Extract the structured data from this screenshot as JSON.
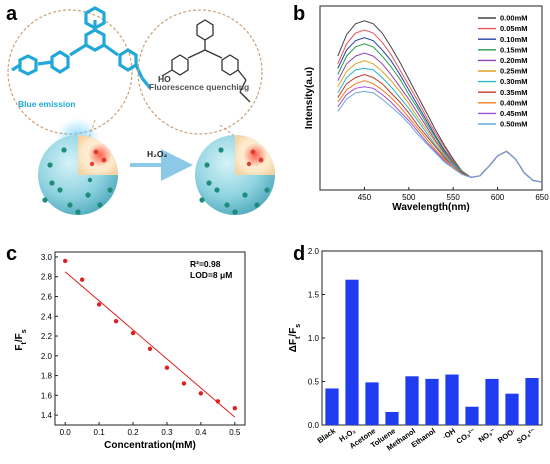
{
  "panel_a": {
    "letter": "a",
    "blue_label": "Blue emission",
    "quench_label": "Fluorescence quenching",
    "arrow_label": "H₂O₂",
    "colors": {
      "sphere": "#8fd3e0",
      "blue_mol": "#21a8d8",
      "dots": "#1d8c7a",
      "red": "#e04030"
    }
  },
  "chart_data": [
    {
      "panel": "b",
      "type": "line",
      "title": "",
      "xlabel": "Wavelength(nm)",
      "ylabel": "Intensity(a.u)",
      "xlim": [
        400,
        650
      ],
      "xticks": [
        450,
        500,
        550,
        600,
        650
      ],
      "legend_position": "top-right",
      "grid": false,
      "x": [
        420,
        430,
        440,
        450,
        460,
        470,
        480,
        490,
        500,
        510,
        520,
        530,
        540,
        550,
        560,
        570,
        580,
        590,
        600,
        610,
        620,
        630,
        640,
        650
      ],
      "series": [
        {
          "name": "0.00mM",
          "color": "#444444",
          "values": [
            0.82,
            0.96,
            1.03,
            1.05,
            1.03,
            0.97,
            0.88,
            0.78,
            0.67,
            0.56,
            0.45,
            0.34,
            0.24,
            0.15,
            0.07,
            0.03,
            0.04,
            0.1,
            0.17,
            0.2,
            0.15,
            0.06,
            0.01,
            0.0
          ]
        },
        {
          "name": "0.05mM",
          "color": "#e8545a",
          "values": [
            0.77,
            0.9,
            0.97,
            0.99,
            0.97,
            0.91,
            0.83,
            0.73,
            0.63,
            0.53,
            0.42,
            0.32,
            0.23,
            0.14,
            0.07,
            0.03,
            0.04,
            0.1,
            0.17,
            0.2,
            0.15,
            0.06,
            0.01,
            0.0
          ]
        },
        {
          "name": "0.10mM",
          "color": "#1f3fa8",
          "values": [
            0.74,
            0.86,
            0.92,
            0.94,
            0.92,
            0.86,
            0.79,
            0.7,
            0.6,
            0.5,
            0.4,
            0.3,
            0.21,
            0.13,
            0.07,
            0.03,
            0.04,
            0.1,
            0.17,
            0.2,
            0.15,
            0.06,
            0.01,
            0.0
          ]
        },
        {
          "name": "0.15mM",
          "color": "#2a9d4a",
          "values": [
            0.7,
            0.82,
            0.88,
            0.9,
            0.88,
            0.82,
            0.75,
            0.67,
            0.57,
            0.48,
            0.38,
            0.29,
            0.2,
            0.13,
            0.07,
            0.03,
            0.04,
            0.1,
            0.17,
            0.2,
            0.15,
            0.06,
            0.01,
            0.0
          ]
        },
        {
          "name": "0.20mM",
          "color": "#8e44ad",
          "values": [
            0.66,
            0.77,
            0.82,
            0.84,
            0.82,
            0.77,
            0.7,
            0.62,
            0.54,
            0.45,
            0.36,
            0.27,
            0.19,
            0.12,
            0.06,
            0.03,
            0.04,
            0.1,
            0.17,
            0.2,
            0.15,
            0.06,
            0.01,
            0.0
          ]
        },
        {
          "name": "0.25mM",
          "color": "#e0a020",
          "values": [
            0.62,
            0.72,
            0.77,
            0.79,
            0.77,
            0.72,
            0.66,
            0.59,
            0.51,
            0.42,
            0.34,
            0.26,
            0.18,
            0.11,
            0.06,
            0.03,
            0.04,
            0.1,
            0.17,
            0.2,
            0.15,
            0.06,
            0.01,
            0.0
          ]
        },
        {
          "name": "0.30mM",
          "color": "#29b6c8",
          "values": [
            0.58,
            0.68,
            0.73,
            0.74,
            0.73,
            0.68,
            0.62,
            0.55,
            0.48,
            0.4,
            0.32,
            0.24,
            0.17,
            0.11,
            0.06,
            0.03,
            0.04,
            0.1,
            0.17,
            0.2,
            0.15,
            0.06,
            0.01,
            0.0
          ]
        },
        {
          "name": "0.35mM",
          "color": "#c0392b",
          "values": [
            0.55,
            0.64,
            0.68,
            0.7,
            0.68,
            0.64,
            0.58,
            0.52,
            0.45,
            0.37,
            0.3,
            0.23,
            0.16,
            0.1,
            0.06,
            0.03,
            0.04,
            0.1,
            0.17,
            0.2,
            0.15,
            0.06,
            0.01,
            0.0
          ]
        },
        {
          "name": "0.40mM",
          "color": "#f07c1e",
          "values": [
            0.52,
            0.6,
            0.64,
            0.66,
            0.64,
            0.6,
            0.55,
            0.49,
            0.42,
            0.35,
            0.28,
            0.21,
            0.15,
            0.1,
            0.05,
            0.03,
            0.04,
            0.1,
            0.17,
            0.2,
            0.15,
            0.06,
            0.01,
            0.0
          ]
        },
        {
          "name": "0.45mM",
          "color": "#9c4fd6",
          "values": [
            0.49,
            0.57,
            0.61,
            0.62,
            0.61,
            0.57,
            0.52,
            0.46,
            0.4,
            0.33,
            0.26,
            0.2,
            0.14,
            0.09,
            0.05,
            0.03,
            0.04,
            0.1,
            0.17,
            0.2,
            0.15,
            0.06,
            0.01,
            0.0
          ]
        },
        {
          "name": "0.50mM",
          "color": "#6aa8e0",
          "values": [
            0.46,
            0.54,
            0.58,
            0.59,
            0.58,
            0.54,
            0.49,
            0.44,
            0.38,
            0.31,
            0.25,
            0.19,
            0.13,
            0.09,
            0.05,
            0.03,
            0.04,
            0.1,
            0.17,
            0.2,
            0.15,
            0.06,
            0.01,
            0.0
          ]
        }
      ]
    },
    {
      "panel": "c",
      "type": "scatter",
      "title": "",
      "xlabel": "Concentration(mM)",
      "ylabel": "F_t/F_s",
      "xlim": [
        -0.03,
        0.53
      ],
      "ylim": [
        1.3,
        3.05
      ],
      "xticks": [
        0.0,
        0.1,
        0.2,
        0.3,
        0.4,
        0.5
      ],
      "yticks": [
        1.4,
        1.6,
        1.8,
        2.0,
        2.2,
        2.4,
        2.6,
        2.8,
        3.0
      ],
      "grid": false,
      "x": [
        0.0,
        0.05,
        0.1,
        0.15,
        0.2,
        0.25,
        0.3,
        0.35,
        0.4,
        0.45,
        0.5
      ],
      "y": [
        2.96,
        2.77,
        2.52,
        2.35,
        2.23,
        2.07,
        1.88,
        1.72,
        1.62,
        1.54,
        1.47
      ],
      "fit": {
        "x": [
          0.0,
          0.5
        ],
        "y": [
          2.85,
          1.38
        ]
      },
      "annotations": [
        "R²=0.98",
        "LOD=8 μM"
      ],
      "color": "#e02020"
    },
    {
      "panel": "d",
      "type": "bar",
      "title": "",
      "xlabel": "",
      "ylabel": "ΔF_t/F_s",
      "ylim": [
        0,
        2.0
      ],
      "yticks": [
        0.0,
        0.5,
        1.0,
        1.5,
        2.0
      ],
      "grid": false,
      "color": "#1f3cf0",
      "categories": [
        "Black",
        "H₂O₂",
        "Acetone",
        "Toluene",
        "Methanol",
        "Ethanol",
        "·OH",
        "CO₃²⁻",
        "NO₃⁻",
        "ROO·",
        "SO₄²⁻"
      ],
      "values": [
        0.42,
        1.67,
        0.49,
        0.15,
        0.56,
        0.53,
        0.58,
        0.21,
        0.53,
        0.36,
        0.54
      ]
    }
  ]
}
